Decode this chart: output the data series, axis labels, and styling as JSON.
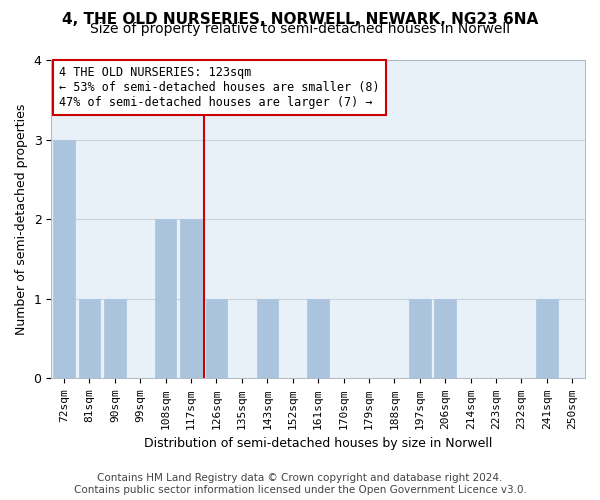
{
  "title": "4, THE OLD NURSERIES, NORWELL, NEWARK, NG23 6NA",
  "subtitle": "Size of property relative to semi-detached houses in Norwell",
  "xlabel": "Distribution of semi-detached houses by size in Norwell",
  "ylabel": "Number of semi-detached properties",
  "categories": [
    "72sqm",
    "81sqm",
    "90sqm",
    "99sqm",
    "108sqm",
    "117sqm",
    "126sqm",
    "135sqm",
    "143sqm",
    "152sqm",
    "161sqm",
    "170sqm",
    "179sqm",
    "188sqm",
    "197sqm",
    "206sqm",
    "214sqm",
    "223sqm",
    "232sqm",
    "241sqm",
    "250sqm"
  ],
  "values": [
    3,
    1,
    1,
    0,
    2,
    2,
    1,
    0,
    1,
    0,
    1,
    0,
    0,
    0,
    1,
    1,
    0,
    0,
    0,
    1,
    0
  ],
  "bar_color": "#aac4de",
  "bar_edge_color": "#aac4de",
  "vline_x_index": 5.5,
  "vline_color": "#cc0000",
  "annotation_text": "4 THE OLD NURSERIES: 123sqm\n← 53% of semi-detached houses are smaller (8)\n47% of semi-detached houses are larger (7) →",
  "annotation_box_color": "#ffffff",
  "annotation_box_edge": "#cc0000",
  "ylim": [
    0,
    4
  ],
  "yticks": [
    0,
    1,
    2,
    3,
    4
  ],
  "grid_color": "#c8d4e0",
  "background_color": "#ffffff",
  "plot_background": "#e8f0f8",
  "footer_text": "Contains HM Land Registry data © Crown copyright and database right 2024.\nContains public sector information licensed under the Open Government Licence v3.0.",
  "title_fontsize": 11,
  "subtitle_fontsize": 10,
  "axis_label_fontsize": 9,
  "tick_fontsize": 8,
  "annotation_fontsize": 8.5,
  "footer_fontsize": 7.5
}
